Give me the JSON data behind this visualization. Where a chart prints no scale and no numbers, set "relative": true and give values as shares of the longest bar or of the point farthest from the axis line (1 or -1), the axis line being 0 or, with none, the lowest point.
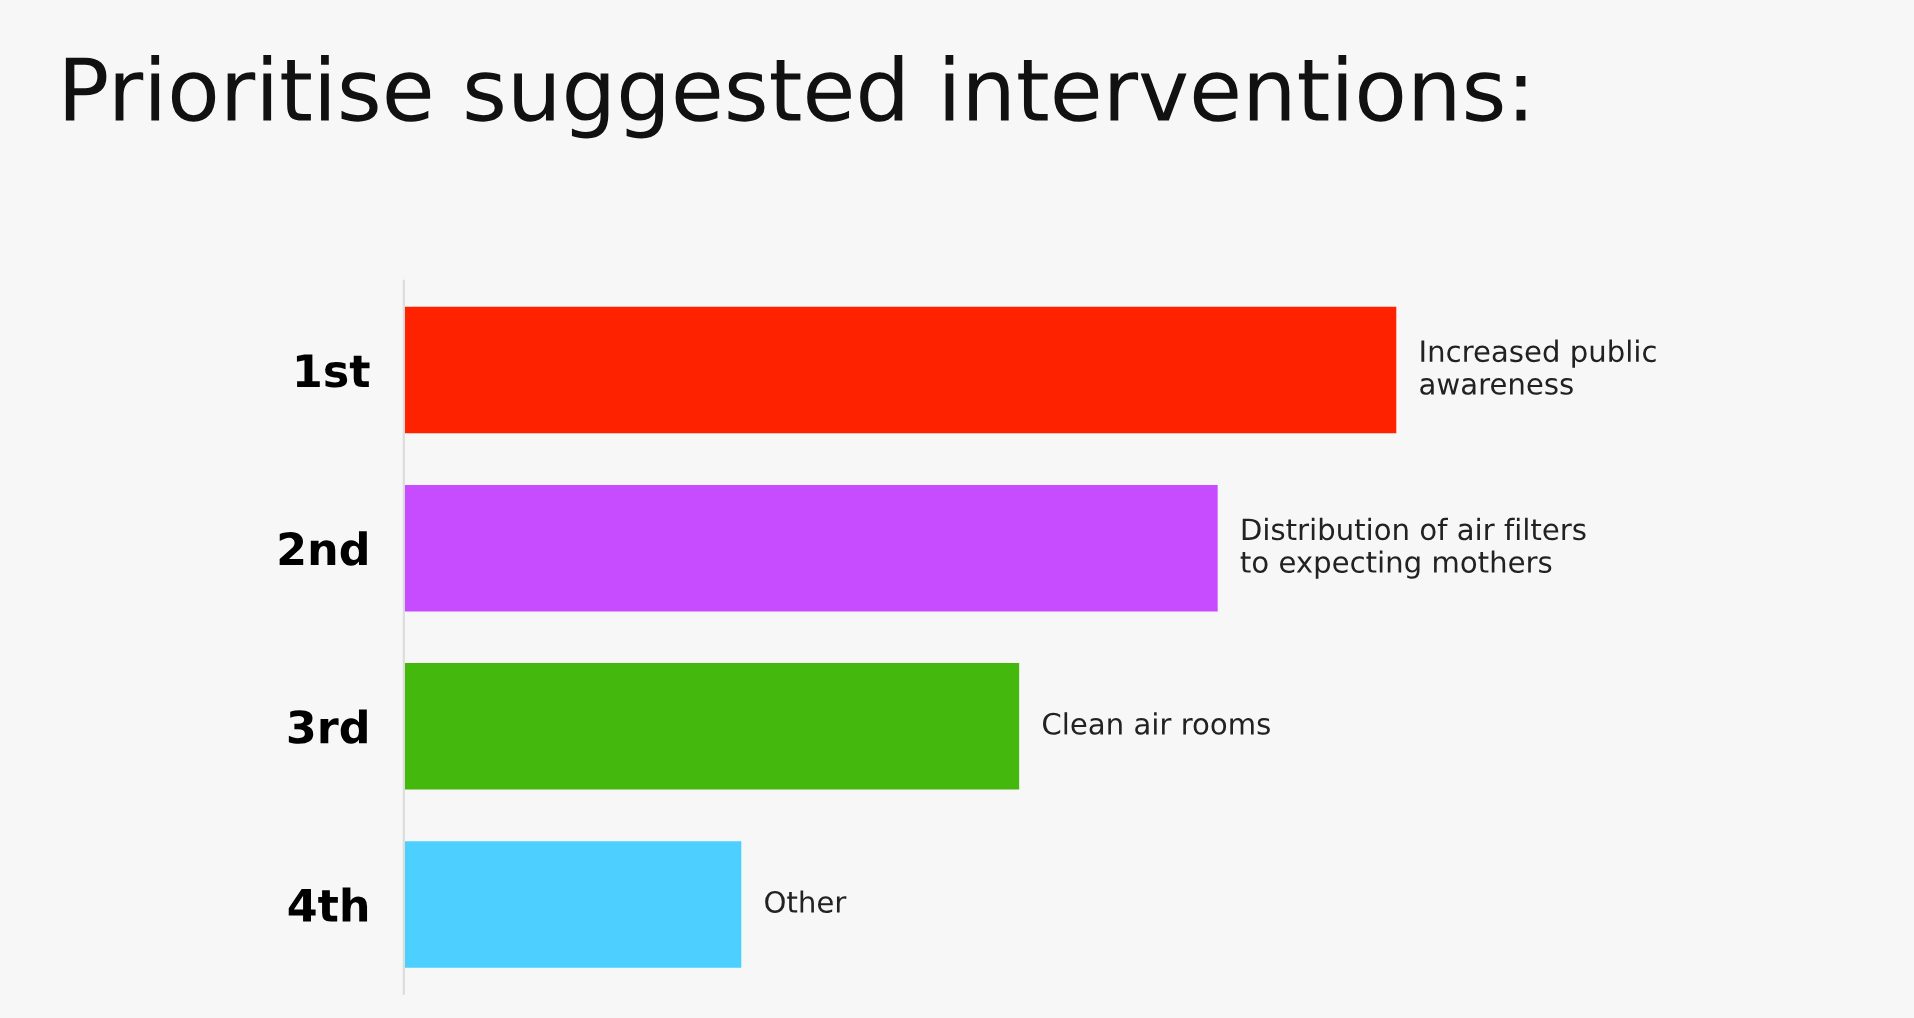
{
  "chart_data": {
    "type": "bar",
    "orientation": "horizontal",
    "relative": true,
    "title": "Prioritise suggested interventions:",
    "categories": [
      "1st",
      "2nd",
      "3rd",
      "4th"
    ],
    "values": [
      1,
      0.82,
      0.62,
      0.34
    ],
    "colors": [
      "#ff2200",
      "#c84cff",
      "#44b80c",
      "#4dcfff"
    ],
    "annotations": [
      {
        "text": "Increased public\nawareness",
        "x": 1,
        "y": "1st"
      },
      {
        "text": "Distribution of air filters\nto expecting mothers",
        "x": 0.82,
        "y": "2nd"
      },
      {
        "text": "Clean air rooms",
        "x": 0.62,
        "y": "3rd"
      },
      {
        "text": "Other",
        "x": 0.34,
        "y": "4th"
      }
    ],
    "grid": false,
    "legend": false
  }
}
